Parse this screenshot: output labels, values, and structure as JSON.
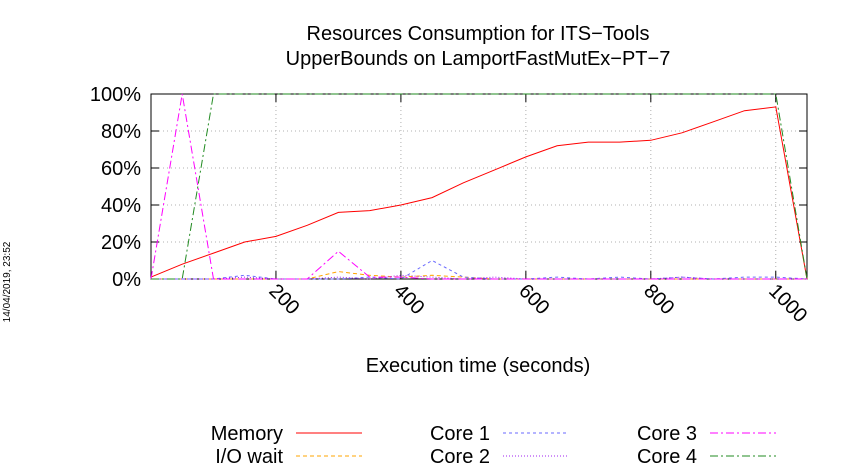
{
  "chart_data": {
    "type": "line",
    "title": [
      "Resources Consumption for ITS−Tools",
      "UpperBounds on LamportFastMutEx−PT−7"
    ],
    "xlabel": "Execution time (seconds)",
    "ylabel": "",
    "xlim": [
      0,
      1050
    ],
    "ylim": [
      0,
      100
    ],
    "xticks": [
      200,
      400,
      600,
      800,
      1000
    ],
    "xtick_labels": [
      "200",
      "400",
      "600",
      "800",
      "1000"
    ],
    "yticks": [
      0,
      20,
      40,
      60,
      80,
      100
    ],
    "ytick_labels": [
      "0%",
      "20%",
      "40%",
      "60%",
      "80%",
      "100%"
    ],
    "grid": true,
    "legend_position": "bottom",
    "series": [
      {
        "name": "Memory",
        "color": "#ff0000",
        "dash": "",
        "x": [
          0,
          50,
          100,
          150,
          200,
          250,
          300,
          350,
          400,
          450,
          500,
          550,
          600,
          650,
          700,
          750,
          800,
          850,
          900,
          950,
          1000,
          1050
        ],
        "y": [
          1,
          8,
          14,
          20,
          23,
          29,
          36,
          37,
          40,
          44,
          52,
          59,
          66,
          72,
          74,
          74,
          75,
          79,
          85,
          91,
          93,
          0
        ]
      },
      {
        "name": "I/O wait",
        "color": "#ffa500",
        "dash": "4,3",
        "x": [
          0,
          50,
          100,
          150,
          200,
          250,
          300,
          350,
          400,
          450,
          500,
          550,
          600,
          650,
          700,
          750,
          800,
          850,
          900,
          950,
          1000,
          1050
        ],
        "y": [
          0,
          0,
          0,
          0,
          0,
          0,
          4,
          2,
          1,
          2,
          1,
          0,
          0,
          0,
          0,
          0,
          0,
          0,
          0,
          0,
          0,
          0
        ]
      },
      {
        "name": "Core 1",
        "color": "#6a6aff",
        "dash": "3,3",
        "x": [
          0,
          50,
          100,
          150,
          200,
          250,
          300,
          350,
          400,
          450,
          500,
          550,
          600,
          650,
          700,
          750,
          800,
          850,
          900,
          950,
          1000,
          1050
        ],
        "y": [
          0,
          0,
          0,
          2,
          0,
          0,
          0,
          1,
          0,
          10,
          1,
          0,
          0,
          1,
          0,
          1,
          0,
          1,
          0,
          1,
          1,
          0
        ]
      },
      {
        "name": "Core 2",
        "color": "#a020f0",
        "dash": "1,2",
        "x": [
          0,
          50,
          100,
          150,
          200,
          250,
          300,
          350,
          400,
          450,
          500,
          550,
          600,
          650,
          700,
          750,
          800,
          850,
          900,
          950,
          1000,
          1050
        ],
        "y": [
          0,
          0,
          0,
          1,
          0,
          0,
          1,
          0,
          2,
          1,
          0,
          1,
          0,
          0,
          0,
          0,
          0,
          1,
          0,
          0,
          0,
          0
        ]
      },
      {
        "name": "Core 3",
        "color": "#ff00ff",
        "dash": "8,3,2,3",
        "x": [
          0,
          50,
          100,
          150,
          200,
          250,
          300,
          350,
          400,
          450,
          500,
          550,
          600,
          650,
          700,
          750,
          800,
          850,
          900,
          950,
          1000,
          1050
        ],
        "y": [
          0,
          100,
          0,
          0,
          0,
          0,
          15,
          1,
          1,
          0,
          0,
          0,
          0,
          0,
          0,
          0,
          0,
          0,
          0,
          0,
          0,
          0
        ]
      },
      {
        "name": "Core 4",
        "color": "#228b22",
        "dash": "8,3,2,3",
        "x": [
          0,
          50,
          100,
          150,
          200,
          250,
          300,
          350,
          400,
          450,
          500,
          550,
          600,
          650,
          700,
          750,
          800,
          850,
          900,
          950,
          1000,
          1050
        ],
        "y": [
          0,
          0,
          100,
          100,
          100,
          100,
          100,
          100,
          100,
          100,
          100,
          100,
          100,
          100,
          100,
          100,
          100,
          100,
          100,
          100,
          100,
          0
        ]
      }
    ]
  },
  "timestamp": "14/04/2019, 23:52"
}
